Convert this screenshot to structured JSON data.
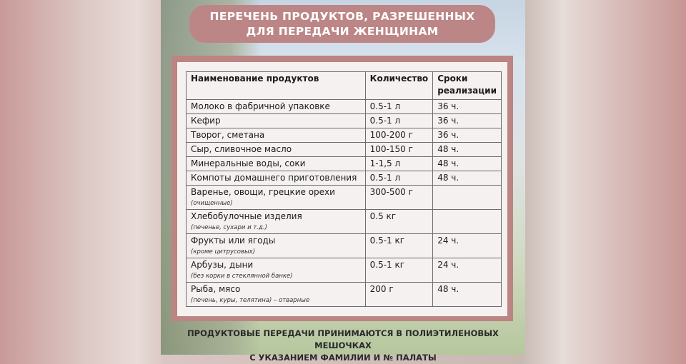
{
  "title": {
    "line1": "ПЕРЕЧЕНЬ ПРОДУКТОВ, РАЗРЕШЕННЫХ",
    "line2": "ДЛЯ ПЕРЕДАЧИ ЖЕНЩИНАМ"
  },
  "table": {
    "headers": [
      "Наименование продуктов",
      "Количество",
      "Сроки реализации"
    ],
    "rows": [
      {
        "name": "Молоко в фабричной упаковке",
        "note": "",
        "qty": "0.5-1 л",
        "term": "36 ч."
      },
      {
        "name": "Кефир",
        "note": "",
        "qty": "0.5-1 л",
        "term": "36 ч."
      },
      {
        "name": "Творог, сметана",
        "note": "",
        "qty": "100-200 г",
        "term": "36 ч."
      },
      {
        "name": "Сыр, сливочное масло",
        "note": "",
        "qty": "100-150 г",
        "term": "48 ч."
      },
      {
        "name": "Минеральные воды, соки",
        "note": "",
        "qty": "1-1,5 л",
        "term": "48 ч."
      },
      {
        "name": "Компоты домашнего приготовления",
        "note": "",
        "qty": "0.5-1 л",
        "term": "48 ч."
      },
      {
        "name": "Варенье, овощи, грецкие орехи",
        "note": "(очищенные)",
        "qty": "300-500 г",
        "term": ""
      },
      {
        "name": "Хлебобулочные изделия",
        "note": "(печенье, сухари и т.д.)",
        "qty": "0.5 кг",
        "term": ""
      },
      {
        "name": "Фрукты или ягоды",
        "note": "(кроме цитрусовых)",
        "qty": "0.5-1 кг",
        "term": "24 ч."
      },
      {
        "name": "Арбузы, дыни",
        "note": "(без корки в стеклянной банке)",
        "qty": "0.5-1 кг",
        "term": "24 ч."
      },
      {
        "name": "Рыба, мясо",
        "note": "(печень, куры, телятина) – отварные",
        "qty": "200 г",
        "term": "48 ч."
      }
    ]
  },
  "footer": {
    "line1": "ПРОДУКТОВЫЕ ПЕРЕДАЧИ ПРИНИМАЮТСЯ В ПОЛИЭТИЛЕНОВЫХ МЕШОЧКАХ",
    "line2": "С УКАЗАНИЕМ ФАМИЛИИ И № ПАЛАТЫ"
  },
  "colors": {
    "accent": "#bd8686",
    "frame": "#bc8482"
  }
}
